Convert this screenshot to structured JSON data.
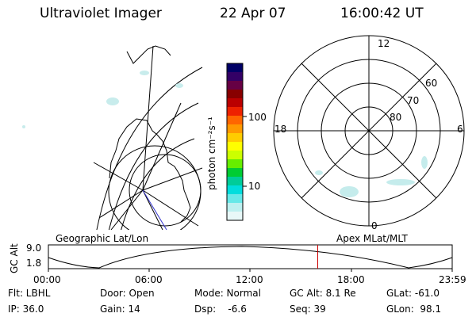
{
  "header": {
    "instrument": "Ultraviolet Imager",
    "date": "22 Apr 07",
    "time": "16:00:42 UT"
  },
  "colorbar": {
    "unit_label": "photon cm⁻²s⁻¹",
    "ticks": [
      "100",
      "10"
    ],
    "colors": [
      "#000066",
      "#330066",
      "#660044",
      "#880000",
      "#bb0000",
      "#ee2200",
      "#ff6600",
      "#ff9900",
      "#ffcc00",
      "#ffff00",
      "#ccff00",
      "#66ee00",
      "#00cc33",
      "#00cc99",
      "#00dddd",
      "#66e8e8",
      "#bdf0f0",
      "#e8f8f8"
    ]
  },
  "polar_plot": {
    "mlt_labels": {
      "top": "12",
      "bottom": "0",
      "left": "18",
      "right": "6"
    },
    "lat_labels": [
      "60",
      "70",
      "80"
    ]
  },
  "timeline": {
    "left_title": "Geographic Lat/Lon",
    "right_title": "Apex MLat/MLT",
    "y_label": "GC Alt",
    "y_ticks": [
      "9.0",
      "1.8"
    ],
    "x_ticks": [
      "00:00",
      "06:00",
      "12:00",
      "18:00",
      "23:59"
    ],
    "current_hour": 16.01,
    "marker_color": "#cc0000"
  },
  "status": {
    "flt": "Flt: LBHL",
    "ip": "IP: 36.0",
    "door": "Door: Open",
    "gain": "Gain: 14",
    "mode": "Mode: Normal",
    "dsp": "Dsp:    -6.6",
    "gcalt": "GC Alt: 8.1 Re",
    "seq": "Seq: 39",
    "glat": "GLat: -61.0",
    "glon": "GLon:  98.1"
  }
}
